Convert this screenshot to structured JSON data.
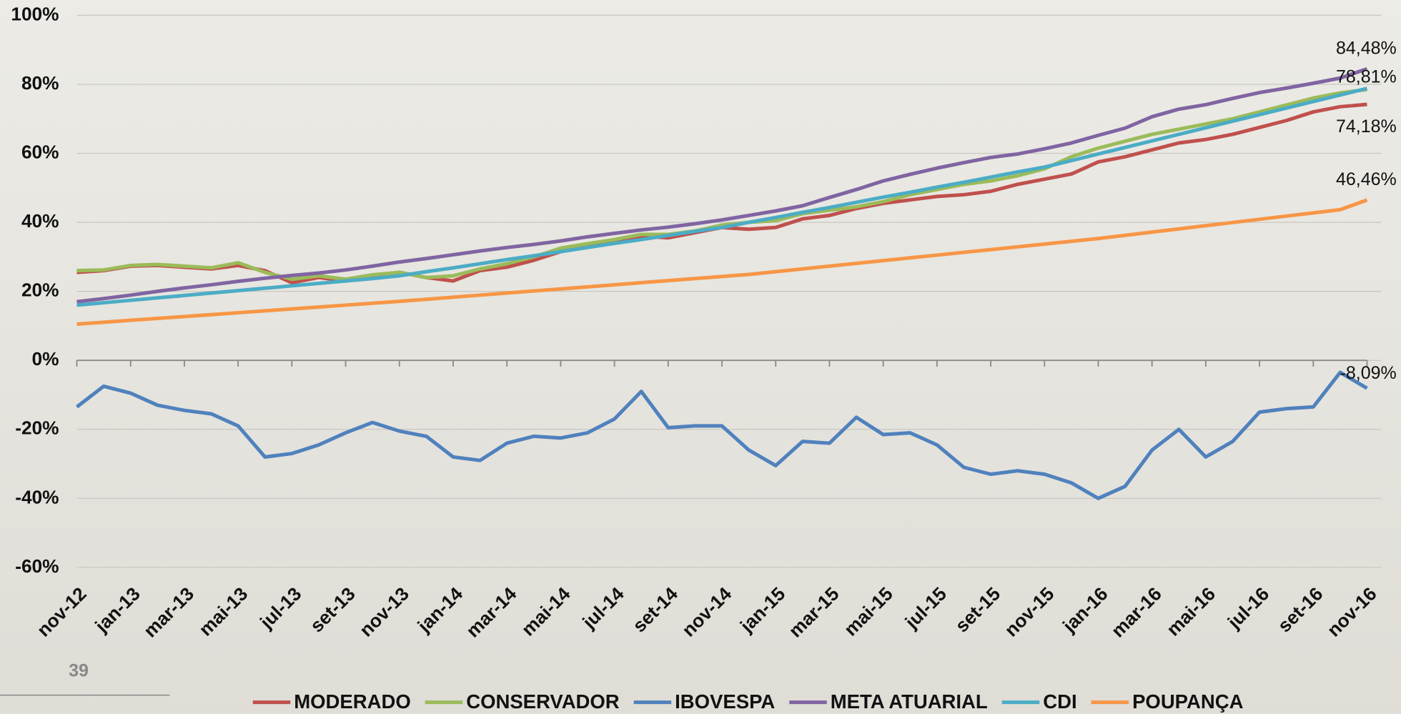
{
  "page_number": "39",
  "chart_data": {
    "type": "line",
    "categories": [
      "nov-12",
      null,
      "jan-13",
      null,
      "mar-13",
      null,
      "mai-13",
      null,
      "jul-13",
      null,
      "set-13",
      null,
      "nov-13",
      null,
      "jan-14",
      null,
      "mar-14",
      null,
      "mai-14",
      null,
      "jul-14",
      null,
      "set-14",
      null,
      "nov-14",
      null,
      "jan-15",
      null,
      "mar-15",
      null,
      "mai-15",
      null,
      "jul-15",
      null,
      "set-15",
      null,
      "nov-15",
      null,
      "jan-16",
      null,
      "mar-16",
      null,
      "mai-16",
      null,
      "jul-16",
      null,
      "set-16",
      null,
      "nov-16"
    ],
    "ylim": [
      -60,
      100
    ],
    "yticks": [
      {
        "value": -60,
        "label": "-60%"
      },
      {
        "value": -40,
        "label": "-40%"
      },
      {
        "value": -20,
        "label": "-20%"
      },
      {
        "value": 0,
        "label": "0%"
      },
      {
        "value": 20,
        "label": "20%"
      },
      {
        "value": 40,
        "label": "40%"
      },
      {
        "value": 60,
        "label": "60%"
      },
      {
        "value": 80,
        "label": "80%"
      },
      {
        "value": 100,
        "label": "100%"
      }
    ],
    "grid": true,
    "legend": "bottom",
    "series": [
      {
        "name": "MODERADO",
        "color": "#c0504d",
        "values": [
          25.5,
          26,
          27.3,
          27.5,
          27,
          26.5,
          27.5,
          26,
          22.5,
          24,
          23,
          24.5,
          25.5,
          24,
          23,
          26,
          27,
          29,
          31.5,
          33,
          34.5,
          36,
          35.5,
          37,
          38.5,
          38,
          38.5,
          41,
          42,
          44,
          45.5,
          46.5,
          47.5,
          48,
          49,
          51,
          52.5,
          54,
          57.5,
          59,
          61,
          63,
          64,
          65.5,
          67.5,
          69.5,
          72,
          73.5,
          74.18
        ],
        "value_labels": [
          null,
          null,
          null,
          null,
          null,
          null,
          null,
          null,
          null,
          null,
          null,
          null,
          null,
          null,
          null,
          null,
          null,
          null,
          null,
          null,
          null,
          null,
          null,
          null,
          null,
          null,
          null,
          null,
          null,
          null,
          null,
          null,
          null,
          null,
          null,
          null,
          null,
          null,
          null,
          null,
          null,
          null,
          null,
          null,
          null,
          null,
          null,
          null,
          "74,18%"
        ]
      },
      {
        "name": "CONSERVADOR",
        "color": "#9bbb59",
        "values": [
          26,
          26.2,
          27.5,
          27.8,
          27.3,
          26.8,
          28.3,
          25.5,
          23.5,
          24.5,
          23.5,
          24.8,
          25.5,
          24,
          24.5,
          26.5,
          28,
          30,
          32.5,
          33.8,
          35,
          36.5,
          36.5,
          37.5,
          39.2,
          40,
          40.5,
          42.5,
          43.5,
          44.5,
          46,
          48,
          49.5,
          51,
          52,
          53.5,
          55.5,
          59,
          61.5,
          63.5,
          65.5,
          67,
          68.5,
          70,
          72,
          74,
          76,
          77.5,
          78.5
        ]
      },
      {
        "name": "IBOVESPA",
        "color": "#4f81bd",
        "values": [
          -13.5,
          -7.5,
          -9.5,
          -13,
          -14.5,
          -15.5,
          -19,
          -28,
          -27,
          -24.5,
          -21,
          -18,
          -20.5,
          -22,
          -28,
          -29,
          -24,
          -22,
          -22.5,
          -21,
          -17,
          -9,
          -19.5,
          -19,
          -19,
          -26,
          -30.5,
          -23.5,
          -24,
          -16.5,
          -21.5,
          -21,
          -24.5,
          -31,
          -33,
          -32,
          -33,
          -35.5,
          -40,
          -36.5,
          -26,
          -20,
          -28,
          -23.5,
          -15,
          -14,
          -13.5,
          -3.5,
          -8.09
        ],
        "value_labels": [
          null,
          null,
          null,
          null,
          null,
          null,
          null,
          null,
          null,
          null,
          null,
          null,
          null,
          null,
          null,
          null,
          null,
          null,
          null,
          null,
          null,
          null,
          null,
          null,
          null,
          null,
          null,
          null,
          null,
          null,
          null,
          null,
          null,
          null,
          null,
          null,
          null,
          null,
          null,
          null,
          null,
          null,
          null,
          null,
          null,
          null,
          null,
          null,
          "-8,09%"
        ]
      },
      {
        "name": "META ATUARIAL",
        "color": "#8064a2",
        "values": [
          17.0,
          17.9,
          18.9,
          20.0,
          21.0,
          21.9,
          22.9,
          23.8,
          24.6,
          25.3,
          26.2,
          27.3,
          28.5,
          29.5,
          30.6,
          31.7,
          32.7,
          33.6,
          34.6,
          35.8,
          36.8,
          37.8,
          38.6,
          39.6,
          40.7,
          42.0,
          43.3,
          44.8,
          47.2,
          49.5,
          52.0,
          53.9,
          55.7,
          57.3,
          58.8,
          59.8,
          61.3,
          63.0,
          65.2,
          67.3,
          70.6,
          72.8,
          74.1,
          75.9,
          77.6,
          78.9,
          80.3,
          81.8,
          84.48
        ],
        "value_labels": [
          null,
          null,
          null,
          null,
          null,
          null,
          null,
          null,
          null,
          null,
          null,
          null,
          null,
          null,
          null,
          null,
          null,
          null,
          null,
          null,
          null,
          null,
          null,
          null,
          null,
          null,
          null,
          null,
          null,
          null,
          null,
          null,
          null,
          null,
          null,
          null,
          null,
          null,
          null,
          null,
          null,
          null,
          null,
          null,
          null,
          null,
          null,
          null,
          "84,48%"
        ]
      },
      {
        "name": "CDI",
        "color": "#4bacc6",
        "values": [
          16,
          16.7,
          17.4,
          18.1,
          18.8,
          19.5,
          20.2,
          20.9,
          21.6,
          22.3,
          23.0,
          23.7,
          24.5,
          25.7,
          26.8,
          28.0,
          29.2,
          30.3,
          31.5,
          32.7,
          33.9,
          35.0,
          36.2,
          37.4,
          38.5,
          40.0,
          41.4,
          42.9,
          44.3,
          45.8,
          47.3,
          48.7,
          50.2,
          51.6,
          53.1,
          54.6,
          56.0,
          57.9,
          59.8,
          61.7,
          63.6,
          65.5,
          67.4,
          69.3,
          71.2,
          73.1,
          75.0,
          76.9,
          78.81
        ],
        "value_labels": [
          null,
          null,
          null,
          null,
          null,
          null,
          null,
          null,
          null,
          null,
          null,
          null,
          null,
          null,
          null,
          null,
          null,
          null,
          null,
          null,
          null,
          null,
          null,
          null,
          null,
          null,
          null,
          null,
          null,
          null,
          null,
          null,
          null,
          null,
          null,
          null,
          null,
          null,
          null,
          null,
          null,
          null,
          null,
          null,
          null,
          null,
          null,
          null,
          "78,81%"
        ]
      },
      {
        "name": "POUPANÇA",
        "color": "#f79646",
        "values": [
          10.5,
          11.05,
          11.6,
          12.15,
          12.7,
          13.25,
          13.8,
          14.35,
          14.9,
          15.45,
          16.0,
          16.55,
          17.1,
          17.7,
          18.3,
          18.9,
          19.5,
          20.1,
          20.7,
          21.3,
          21.9,
          22.5,
          23.1,
          23.7,
          24.3,
          24.9,
          25.7,
          26.5,
          27.3,
          28.1,
          28.9,
          29.7,
          30.5,
          31.3,
          32.1,
          32.9,
          33.7,
          34.5,
          35.3,
          36.23,
          37.16,
          38.09,
          39.02,
          39.95,
          40.88,
          41.81,
          42.74,
          43.67,
          46.46
        ],
        "value_labels": [
          null,
          null,
          null,
          null,
          null,
          null,
          null,
          null,
          null,
          null,
          null,
          null,
          null,
          null,
          null,
          null,
          null,
          null,
          null,
          null,
          null,
          null,
          null,
          null,
          null,
          null,
          null,
          null,
          null,
          null,
          null,
          null,
          null,
          null,
          null,
          null,
          null,
          null,
          null,
          null,
          null,
          null,
          null,
          null,
          null,
          null,
          null,
          null,
          "46,46%"
        ]
      }
    ]
  }
}
